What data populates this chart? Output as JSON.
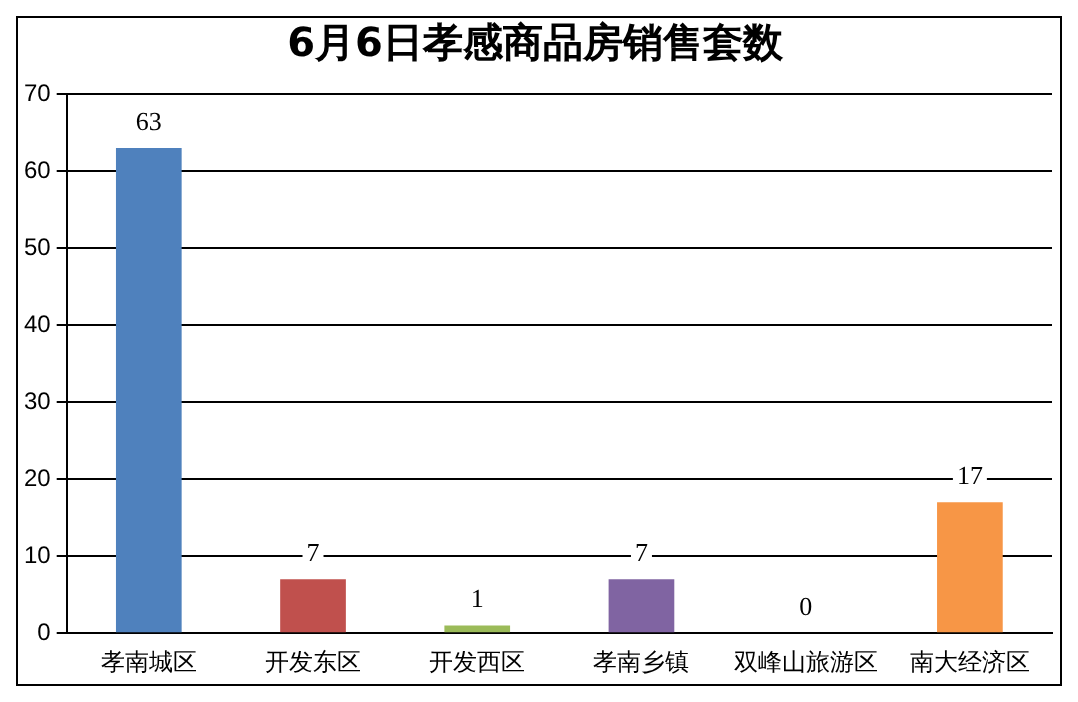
{
  "chart_data": {
    "type": "bar",
    "title": "6月6日孝感商品房销售套数",
    "categories": [
      "孝南城区",
      "开发东区",
      "开发西区",
      "孝南乡镇",
      "双峰山旅游区",
      "南大经济区"
    ],
    "values": [
      63,
      7,
      1,
      7,
      0,
      17
    ],
    "colors": [
      "#4f81bd",
      "#c0504d",
      "#9bbb59",
      "#8064a2",
      "#4bacc6",
      "#f79646"
    ],
    "ylim": [
      0,
      70
    ],
    "yticks": [
      0,
      10,
      20,
      30,
      40,
      50,
      60,
      70
    ],
    "grid": "y",
    "data_labels": true,
    "legend": false
  }
}
